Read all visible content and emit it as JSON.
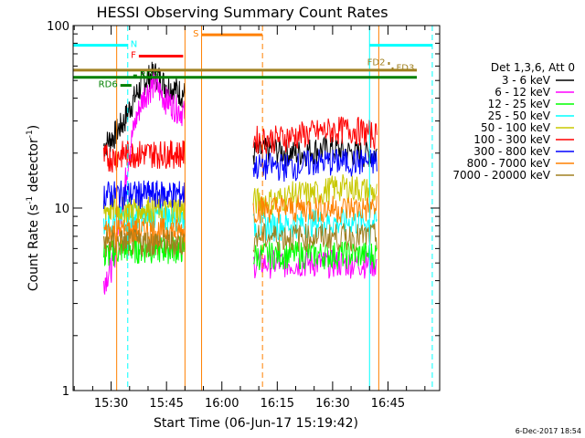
{
  "chart_data": {
    "type": "line",
    "title": "HESSI Observing Summary Count Rates",
    "xlabel": "Start Time (06-Jun-17 15:19:42)",
    "ylabel_main": "Count Rate (s",
    "ylabel_exp": "-1",
    "ylabel_rest": " detector",
    "ylabel_exp2": "-1",
    "ylabel_close": ")",
    "y_scale": "log",
    "ylim": [
      1,
      100
    ],
    "xlim": [
      "15:19:42",
      "16:59:00"
    ],
    "x_ticks": [
      "15:30",
      "15:45",
      "16:00",
      "16:15",
      "16:30",
      "16:45"
    ],
    "y_ticks": [
      "1",
      "10",
      "100"
    ],
    "footer": "6-Dec-2017 18:54",
    "legend_title": "Det 1,3,6, Att 0",
    "legend_placement": "right",
    "series": [
      {
        "name": "3 - 6 keV",
        "color": "#000000",
        "pre": [
          22,
          25,
          30,
          40,
          50,
          55,
          48,
          45,
          42
        ],
        "post": [
          20,
          21,
          20,
          21,
          21,
          20,
          20
        ]
      },
      {
        "name": "6 - 12 keV",
        "color": "#ff00ff",
        "pre": [
          4,
          5,
          12,
          28,
          42,
          48,
          40,
          36,
          33
        ],
        "post": [
          5,
          5,
          5,
          5,
          5,
          5,
          5
        ]
      },
      {
        "name": "12 - 25 keV",
        "color": "#00ff00",
        "pre": [
          5.5,
          5.8,
          6,
          6,
          6,
          6,
          6,
          6,
          6
        ],
        "post": [
          5.5,
          5.6,
          5.6,
          5.6,
          5.6,
          5.6,
          5.6
        ]
      },
      {
        "name": "25 - 50 keV",
        "color": "#00ffff",
        "pre": [
          8.5,
          8.6,
          8.8,
          9,
          9,
          9,
          9,
          9,
          9
        ],
        "post": [
          8,
          8,
          8.2,
          8.4,
          8.4,
          8.4,
          8.4
        ]
      },
      {
        "name": "50 - 100 keV",
        "color": "#c8c800",
        "pre": [
          10,
          10,
          10,
          10,
          10,
          10,
          10,
          10,
          10
        ],
        "post": [
          11,
          11,
          12,
          12,
          13,
          13,
          12
        ]
      },
      {
        "name": "100 - 300 keV",
        "color": "#ff0000",
        "pre": [
          19,
          19,
          20,
          20,
          20,
          20,
          20,
          20,
          20
        ],
        "post": [
          24,
          24,
          25,
          26,
          27,
          27,
          25
        ]
      },
      {
        "name": "300 - 800 keV",
        "color": "#0000ff",
        "pre": [
          12,
          12,
          12,
          12,
          12,
          12,
          12,
          12,
          12
        ],
        "post": [
          17,
          17,
          17,
          18,
          18,
          18,
          18
        ]
      },
      {
        "name": "800 - 7000 keV",
        "color": "#ff8000",
        "pre": [
          7.5,
          7.5,
          7.5,
          7.5,
          7.5,
          7.5,
          7.5,
          7.5,
          7.5
        ],
        "post": [
          10,
          10,
          10,
          10,
          10,
          10,
          10
        ]
      },
      {
        "name": "7000 - 20000 keV",
        "color": "#a08020",
        "pre": [
          6.5,
          6.5,
          6.5,
          6.5,
          6.5,
          6.5,
          6.5,
          6.5,
          6.5
        ],
        "post": [
          7,
          7,
          7,
          7,
          7,
          7,
          7
        ]
      }
    ],
    "pre_range": [
      "15:28:00",
      "15:50:00"
    ],
    "post_range": [
      "16:08:30",
      "16:42:00"
    ],
    "flag_bars": [
      {
        "label": "N",
        "color": "#00ffff",
        "y": 78,
        "start": "15:19:42",
        "end": "15:34:30",
        "label_pos": "end"
      },
      {
        "label": "N",
        "color": "#00ffff",
        "y": 78,
        "start": "16:40:00",
        "end": "16:57:00",
        "label_pos": "none"
      },
      {
        "label": "F",
        "color": "#ff0000",
        "y": 68,
        "start": "15:37:30",
        "end": "15:49:30",
        "label_pos": "start"
      },
      {
        "label": "S",
        "color": "#ff8000",
        "y": 89,
        "start": "15:54:30",
        "end": "16:11:00",
        "label_pos": "start"
      },
      {
        "label": "RD6",
        "color": "#008000",
        "y": 47,
        "start": "15:32:30",
        "end": "15:35:30",
        "label_pos": "start"
      },
      {
        "label": "RD9",
        "color": "#008000",
        "y": 53,
        "start": "15:36:00",
        "end": "15:37:00",
        "label_pos": "end"
      },
      {
        "label": "FD2",
        "color": "#a08020",
        "y": 62,
        "start": "16:45:00",
        "end": "16:45:30",
        "label_pos": "start"
      },
      {
        "label": "FD3",
        "color": "#a08020",
        "y": 58,
        "start": "16:46:00",
        "end": "16:46:30",
        "label_pos": "end"
      }
    ],
    "hlines": [
      {
        "color": "#a08020",
        "y": 57
      },
      {
        "color": "#008000",
        "y": 52
      }
    ],
    "vlines": [
      {
        "color": "#00ffff",
        "x": "15:19:42",
        "style": "solid"
      },
      {
        "color": "#ff8000",
        "x": "15:31:30",
        "style": "solid"
      },
      {
        "color": "#00ffff",
        "x": "15:34:30",
        "style": "dashed"
      },
      {
        "color": "#ff8000",
        "x": "15:50:00",
        "style": "solid"
      },
      {
        "color": "#ff8000",
        "x": "15:54:30",
        "style": "solid"
      },
      {
        "color": "#ff8000",
        "x": "16:11:00",
        "style": "dashed"
      },
      {
        "color": "#00ffff",
        "x": "16:40:00",
        "style": "solid"
      },
      {
        "color": "#ff8000",
        "x": "16:42:30",
        "style": "solid"
      },
      {
        "color": "#00ffff",
        "x": "16:57:00",
        "style": "dashed"
      }
    ]
  }
}
